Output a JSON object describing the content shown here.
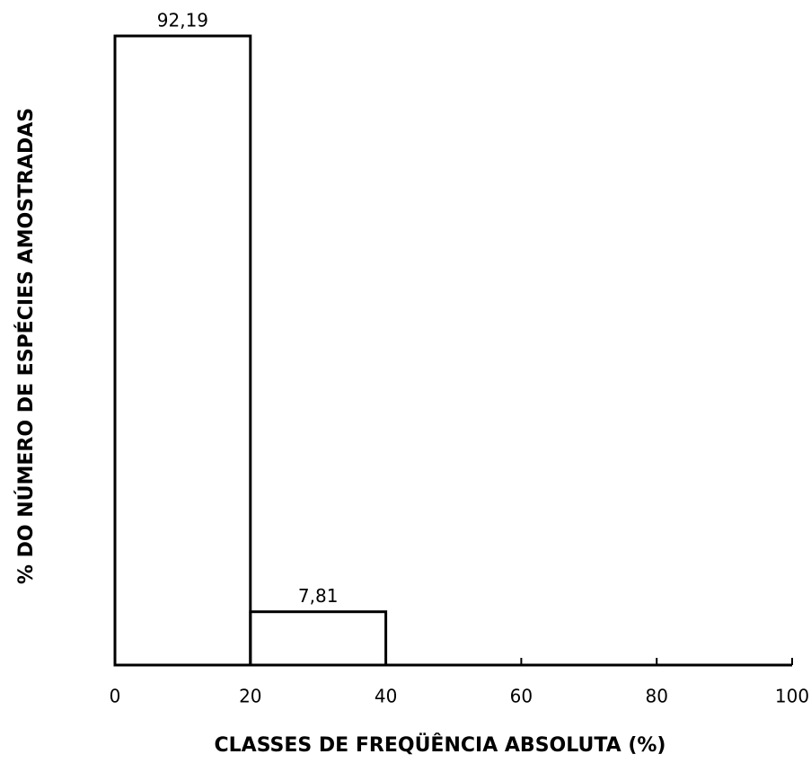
{
  "chart_data": {
    "type": "histogram",
    "bins": [
      0,
      20,
      40
    ],
    "values": [
      92.19,
      7.81
    ],
    "value_labels": [
      "92,19",
      "7,81"
    ],
    "xlim": [
      0,
      100
    ],
    "xticks": [
      0,
      20,
      40,
      60,
      80,
      100
    ],
    "xlabel": "CLASSES DE FREQÜÊNCIA ABSOLUTA (%)",
    "ylabel": "% DO NÚMERO DE ESPÉCIES AMOSTRADAS",
    "color": "#000000"
  }
}
